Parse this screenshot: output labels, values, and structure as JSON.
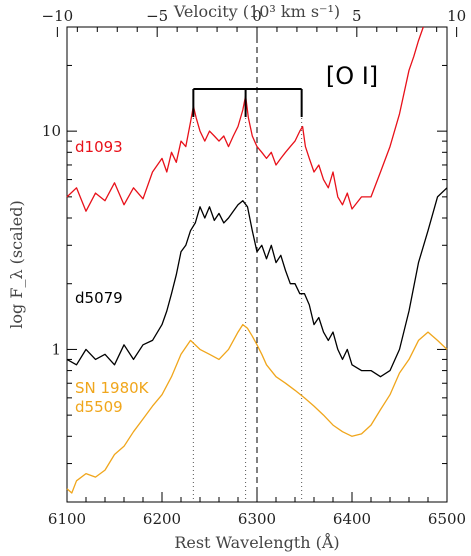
{
  "chart_data": {
    "type": "line",
    "title": "",
    "xlabel": "Rest Wavelength (Å)",
    "ylabel": "log F_λ (scaled)",
    "x2label": "Velocity (10³ km s⁻¹)",
    "xlim": [
      6100,
      6500
    ],
    "ylim_log": [
      0.2,
      30
    ],
    "y_scale": "log",
    "grid": false,
    "x_ticks": [
      6100,
      6200,
      6300,
      6400,
      6500
    ],
    "x2_ticks": [
      -10,
      -5,
      0,
      5,
      10
    ],
    "y_ticks": [
      1,
      10
    ],
    "y_tick_labels": [
      "1",
      "10"
    ],
    "rest_wavelength": 6300,
    "annotation": {
      "label": "[O I]",
      "lines_wavelength": [
        6233,
        6288,
        6347
      ],
      "rest_line": 6300
    },
    "series": [
      {
        "label": "d1093",
        "color": "#e8111a",
        "x": [
          6100,
          6110,
          6120,
          6130,
          6140,
          6150,
          6160,
          6170,
          6180,
          6190,
          6200,
          6205,
          6210,
          6215,
          6220,
          6225,
          6230,
          6233,
          6236,
          6240,
          6245,
          6250,
          6255,
          6260,
          6265,
          6270,
          6275,
          6280,
          6285,
          6288,
          6291,
          6295,
          6300,
          6305,
          6310,
          6315,
          6320,
          6325,
          6330,
          6335,
          6340,
          6345,
          6348,
          6351,
          6355,
          6360,
          6365,
          6370,
          6375,
          6380,
          6385,
          6390,
          6395,
          6400,
          6410,
          6420,
          6430,
          6440,
          6450,
          6460,
          6465,
          6470,
          6475
        ],
        "y": [
          5.0,
          5.5,
          4.3,
          5.2,
          4.8,
          5.8,
          4.6,
          5.5,
          4.9,
          6.5,
          7.5,
          6.5,
          8.0,
          7.2,
          9.0,
          8.5,
          11.0,
          13.0,
          11.5,
          10.0,
          9.0,
          10.0,
          9.5,
          9.0,
          9.5,
          8.5,
          9.5,
          10.5,
          12.5,
          14.5,
          11.5,
          9.5,
          8.5,
          8.0,
          7.5,
          8.0,
          7.0,
          7.5,
          8.0,
          8.5,
          9.0,
          10.0,
          10.5,
          8.5,
          7.5,
          6.5,
          7.0,
          6.0,
          5.5,
          6.5,
          5.0,
          4.6,
          5.2,
          4.4,
          5.0,
          5.0,
          6.5,
          8.5,
          12.0,
          19.0,
          22.0,
          26.0,
          30.0
        ]
      },
      {
        "label": "d5079",
        "color": "#000000",
        "x": [
          6100,
          6110,
          6120,
          6130,
          6140,
          6150,
          6160,
          6170,
          6180,
          6190,
          6200,
          6205,
          6210,
          6215,
          6220,
          6225,
          6230,
          6235,
          6240,
          6245,
          6250,
          6255,
          6260,
          6265,
          6270,
          6275,
          6280,
          6285,
          6290,
          6295,
          6300,
          6305,
          6310,
          6315,
          6320,
          6325,
          6330,
          6335,
          6340,
          6345,
          6350,
          6355,
          6360,
          6365,
          6370,
          6375,
          6380,
          6385,
          6390,
          6395,
          6400,
          6410,
          6420,
          6430,
          6440,
          6450,
          6460,
          6470,
          6480,
          6490,
          6500
        ],
        "y": [
          0.9,
          0.85,
          1.0,
          0.9,
          0.95,
          0.85,
          1.05,
          0.9,
          1.05,
          1.1,
          1.3,
          1.5,
          1.8,
          2.2,
          2.8,
          3.0,
          3.5,
          3.8,
          4.5,
          4.0,
          4.5,
          3.9,
          4.2,
          3.8,
          4.0,
          4.3,
          4.6,
          4.8,
          4.5,
          3.5,
          2.8,
          3.0,
          2.6,
          3.0,
          2.5,
          2.7,
          2.3,
          2.0,
          2.0,
          1.8,
          1.8,
          1.6,
          1.3,
          1.4,
          1.2,
          1.1,
          1.2,
          1.0,
          0.9,
          1.0,
          0.85,
          0.8,
          0.8,
          0.75,
          0.8,
          1.0,
          1.5,
          2.5,
          3.5,
          5.0,
          5.5
        ]
      },
      {
        "label": "SN 1980K\nd5509",
        "color": "#f0a61c",
        "x": [
          6100,
          6105,
          6110,
          6120,
          6130,
          6140,
          6150,
          6160,
          6170,
          6180,
          6190,
          6200,
          6210,
          6220,
          6230,
          6240,
          6250,
          6260,
          6270,
          6280,
          6285,
          6290,
          6295,
          6300,
          6305,
          6310,
          6320,
          6330,
          6340,
          6350,
          6360,
          6370,
          6380,
          6390,
          6400,
          6410,
          6420,
          6430,
          6440,
          6450,
          6460,
          6470,
          6480,
          6490,
          6500
        ],
        "y": [
          0.23,
          0.22,
          0.25,
          0.27,
          0.26,
          0.28,
          0.33,
          0.36,
          0.42,
          0.48,
          0.55,
          0.62,
          0.75,
          0.95,
          1.1,
          1.0,
          0.95,
          0.9,
          1.0,
          1.2,
          1.3,
          1.25,
          1.15,
          1.05,
          0.95,
          0.85,
          0.75,
          0.7,
          0.65,
          0.6,
          0.55,
          0.5,
          0.45,
          0.42,
          0.4,
          0.41,
          0.45,
          0.53,
          0.62,
          0.78,
          0.9,
          1.1,
          1.2,
          1.1,
          1.0
        ]
      }
    ]
  }
}
